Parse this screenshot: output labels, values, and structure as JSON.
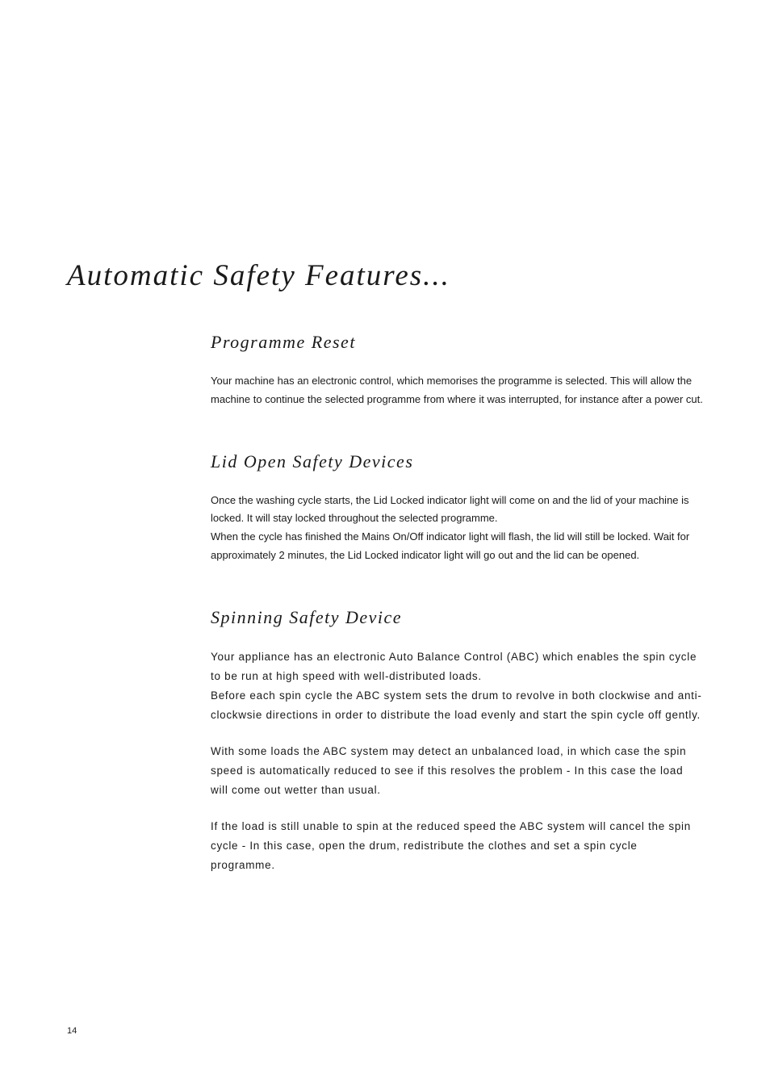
{
  "page": {
    "title": "Automatic Safety Features...",
    "number": "14"
  },
  "sections": {
    "programmeReset": {
      "title": "Programme Reset",
      "body": "Your machine has an electronic control, which memorises the programme is selected.  This will allow the machine to continue the selected programme from where it was interrupted, for instance after a power cut."
    },
    "lidOpen": {
      "title": "Lid Open Safety Devices",
      "para1": "Once the washing cycle starts, the Lid Locked indicator light will come on and the lid of your machine is locked.  It will stay locked throughout the selected programme.",
      "para2": "When the cycle has finished the Mains On/Off indicator light will flash, the lid will still be locked. Wait for approximately 2 minutes, the Lid Locked indicator light will go out and the lid can be opened."
    },
    "spinning": {
      "title": "Spinning Safety Device",
      "para1": "Your appliance has an electronic Auto Balance Control (ABC) which enables the spin cycle to be run at high speed with well-distributed loads.",
      "para2": "Before each spin cycle the ABC system sets the drum to revolve in both clockwise and anti-clockwsie directions in order to distribute the load evenly and start the spin cycle off gently.",
      "para3": "With some loads the ABC system may detect an unbalanced load, in which case the spin speed is automatically reduced to see if this resolves the problem - In this case the load will come out wetter than usual.",
      "para4": "If the load is still unable to spin at the reduced speed the ABC system will cancel the spin cycle - In this case, open the drum, redistribute the clothes and set a spin cycle programme."
    }
  }
}
